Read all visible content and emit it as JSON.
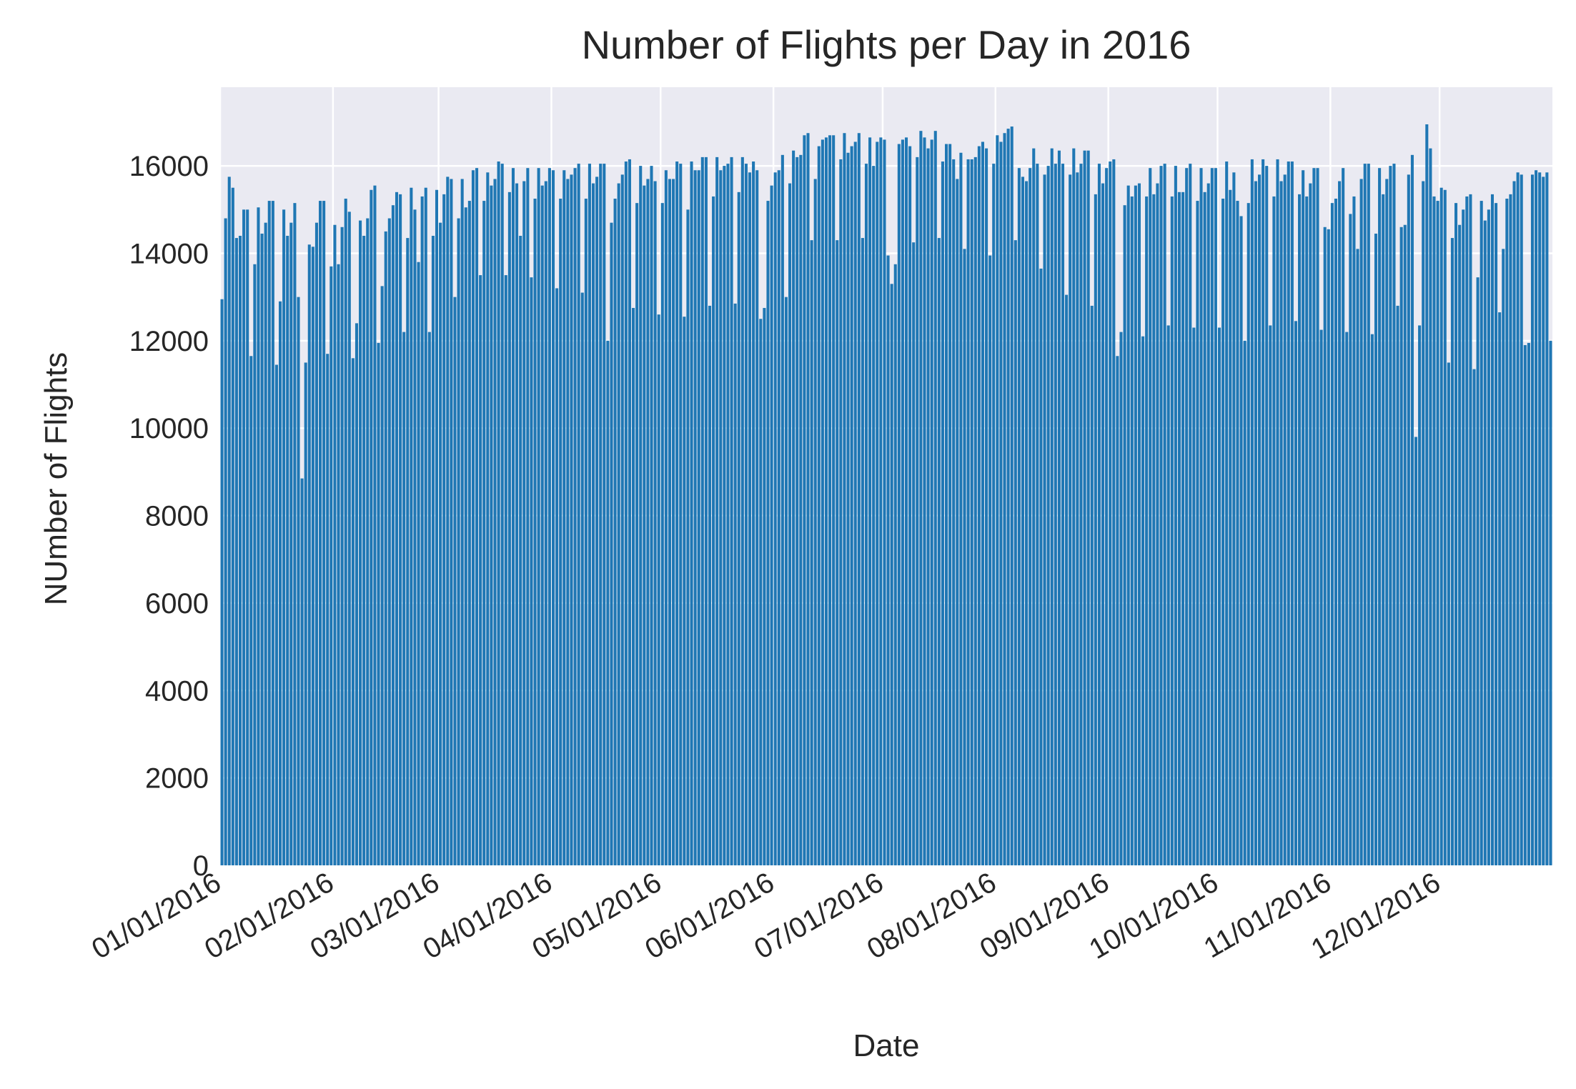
{
  "chart_data": {
    "type": "bar",
    "title": "Number of Flights per Day in 2016",
    "xlabel": "Date",
    "ylabel": "NUmber of Flights",
    "ylim": [
      0,
      17800
    ],
    "yticks": [
      0,
      2000,
      4000,
      6000,
      8000,
      10000,
      12000,
      14000,
      16000
    ],
    "xticks": [
      "01/01/2016",
      "02/01/2016",
      "03/01/2016",
      "04/01/2016",
      "05/01/2016",
      "06/01/2016",
      "07/01/2016",
      "08/01/2016",
      "09/01/2016",
      "10/01/2016",
      "11/01/2016",
      "12/01/2016"
    ],
    "xlim_dates": [
      "2016-01-01",
      "2016-12-31"
    ],
    "grid": true,
    "legend": "none",
    "colors": {
      "bar": "#1f77b4",
      "background": "#eaeaf2",
      "grid": "#ffffff",
      "text": "#262626"
    },
    "series": [
      {
        "start_date": "2016-01-01",
        "values": [
          12950,
          14800,
          15750,
          15500,
          14350,
          14400,
          15000,
          15000,
          11650,
          13750,
          15050,
          14450,
          14700,
          15200,
          15200,
          11450,
          12900,
          15000,
          14400,
          14700,
          15150,
          13000,
          8850,
          11500,
          14200,
          14150,
          14700,
          15200,
          15200,
          11700,
          13700,
          14650,
          13750,
          14600,
          15250,
          14950,
          11600,
          12400,
          14750,
          14400,
          14800,
          15450,
          15550,
          11950,
          13250,
          14500,
          14800,
          15100,
          15400,
          15350,
          12200,
          14350,
          15500,
          15000,
          13800,
          15300,
          15500,
          12200,
          14400,
          15450,
          14700,
          15350,
          15750,
          15700,
          13000,
          14800,
          15700,
          15050,
          15200,
          15900,
          15950,
          13500,
          15200,
          15850,
          15550,
          15700,
          16100,
          16050,
          13500,
          15400,
          15950,
          15600,
          14400,
          15650,
          15950,
          13450,
          15250,
          15950,
          15550,
          15650,
          15950,
          15900,
          13200,
          15250,
          15900,
          15700,
          15800,
          15950,
          16050,
          13100,
          15250,
          16050,
          15600,
          15750,
          16050,
          16050,
          12000,
          14700,
          15250,
          15600,
          15800,
          16100,
          16150,
          12750,
          15150,
          16000,
          15550,
          15700,
          16000,
          15650,
          12600,
          15150,
          15900,
          15700,
          15700,
          16100,
          16050,
          12550,
          15000,
          16100,
          15900,
          15900,
          16200,
          16200,
          12800,
          15300,
          16200,
          15900,
          16000,
          16050,
          16200,
          12850,
          15400,
          16200,
          16050,
          15850,
          16100,
          15900,
          12500,
          12750,
          15200,
          15550,
          15850,
          15900,
          16250,
          13000,
          15600,
          16350,
          16200,
          16250,
          16700,
          16750,
          14300,
          15700,
          16450,
          16600,
          16650,
          16700,
          16700,
          14300,
          16150,
          16750,
          16300,
          16450,
          16550,
          16750,
          14350,
          16050,
          16650,
          16000,
          16550,
          16650,
          16600,
          13950,
          13300,
          13750,
          16500,
          16600,
          16650,
          16450,
          14250,
          16200,
          16800,
          16650,
          16400,
          16600,
          16800,
          14350,
          16100,
          16500,
          16500,
          16150,
          15700,
          16300,
          14100,
          16150,
          16150,
          16200,
          16450,
          16550,
          16400,
          13950,
          16050,
          16700,
          16550,
          16750,
          16850,
          16900,
          14300,
          15950,
          15750,
          15650,
          15950,
          16400,
          16050,
          13650,
          15800,
          16000,
          16400,
          16050,
          16350,
          16050,
          13050,
          15800,
          16400,
          15850,
          16050,
          16350,
          16350,
          12800,
          15350,
          16050,
          15600,
          15950,
          16100,
          16150,
          11650,
          12200,
          15100,
          15550,
          15300,
          15550,
          15600,
          12100,
          15300,
          15950,
          15350,
          15600,
          16000,
          16050,
          12350,
          15300,
          16000,
          15400,
          15400,
          15950,
          16050,
          12300,
          15200,
          15950,
          15400,
          15600,
          15950,
          15950,
          12300,
          15250,
          16100,
          15450,
          15850,
          15200,
          14850,
          12000,
          15150,
          16150,
          15650,
          15800,
          16150,
          16000,
          12350,
          15300,
          16150,
          15650,
          15800,
          16100,
          16100,
          12450,
          15350,
          15900,
          15300,
          15600,
          15950,
          15950,
          12250,
          14600,
          14550,
          15150,
          15250,
          15650,
          15950,
          12200,
          14900,
          15300,
          14100,
          15700,
          16050,
          16050,
          12150,
          14450,
          15950,
          15350,
          15700,
          16000,
          16050,
          12800,
          14600,
          14650,
          15800,
          16250,
          9800,
          12350,
          15650,
          16950,
          16400,
          15300,
          15200,
          15500,
          15450,
          11500,
          14350,
          15150,
          14650,
          15000,
          15300,
          15350,
          11350,
          13450,
          15200,
          14750,
          15000,
          15350,
          15150,
          12650,
          14100,
          15250,
          15350,
          15650,
          15850,
          15800,
          11900,
          11950,
          15800,
          15900,
          15850,
          15750,
          15850,
          12000
        ]
      }
    ]
  }
}
